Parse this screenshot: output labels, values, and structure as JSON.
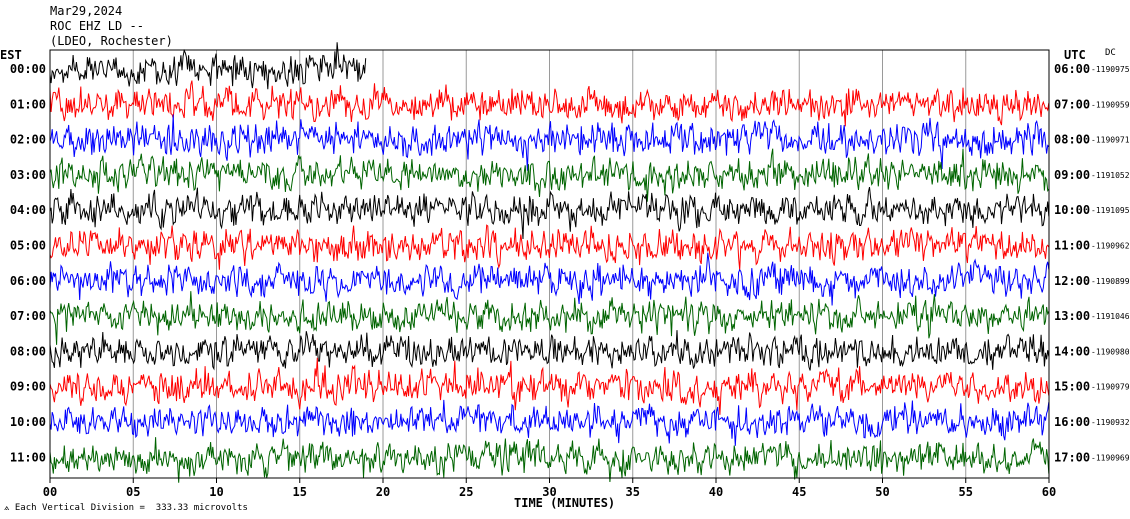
{
  "header": {
    "date": "Mar29,2024",
    "station": "ROC EHZ LD --",
    "location": "(LDEO, Rochester)"
  },
  "left_zone": "EST",
  "right_zone": "UTC",
  "dc_label": "DC",
  "footer": {
    "scale_note": "Each Vertical Division =  333.33 microvolts"
  },
  "chart_data": {
    "type": "line",
    "xlabel": "TIME (MINUTES)",
    "x_ticks": [
      "00",
      "05",
      "10",
      "15",
      "20",
      "25",
      "30",
      "35",
      "40",
      "45",
      "50",
      "55",
      "60"
    ],
    "xlim": [
      0,
      60
    ],
    "trace_colors": [
      "#000000",
      "#ff0000",
      "#0000ff",
      "#006400"
    ],
    "rows": [
      {
        "est": "00:00",
        "utc": "06:00",
        "dc": "-1190975",
        "end_minute": 19
      },
      {
        "est": "01:00",
        "utc": "07:00",
        "dc": "-1190959",
        "end_minute": 60
      },
      {
        "est": "02:00",
        "utc": "08:00",
        "dc": "-1190971",
        "end_minute": 60
      },
      {
        "est": "03:00",
        "utc": "09:00",
        "dc": "-1191052",
        "end_minute": 60
      },
      {
        "est": "04:00",
        "utc": "10:00",
        "dc": "-1191095",
        "end_minute": 60
      },
      {
        "est": "05:00",
        "utc": "11:00",
        "dc": "-1190962",
        "end_minute": 60
      },
      {
        "est": "06:00",
        "utc": "12:00",
        "dc": "-1190899",
        "end_minute": 60
      },
      {
        "est": "07:00",
        "utc": "13:00",
        "dc": "-1191046",
        "end_minute": 60
      },
      {
        "est": "08:00",
        "utc": "14:00",
        "dc": "-1190980",
        "end_minute": 60
      },
      {
        "est": "09:00",
        "utc": "15:00",
        "dc": "-1190979",
        "end_minute": 60
      },
      {
        "est": "10:00",
        "utc": "16:00",
        "dc": "-1190932",
        "end_minute": 60
      },
      {
        "est": "11:00",
        "utc": "17:00",
        "dc": "-1190969",
        "end_minute": 60
      }
    ]
  }
}
